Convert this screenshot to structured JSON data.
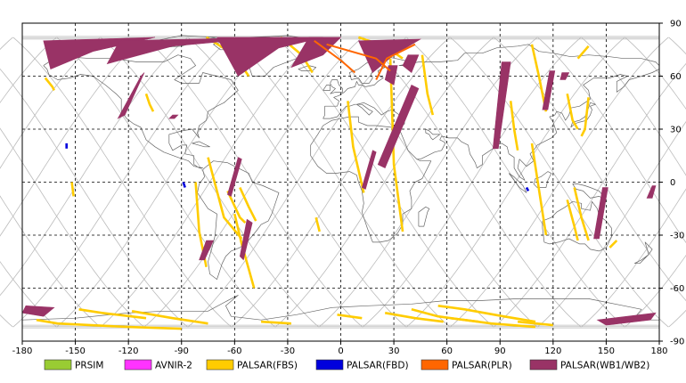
{
  "map": {
    "lon_range": [
      -180,
      180
    ],
    "lat_range": [
      -90,
      90
    ],
    "lon_ticks": [
      "-180",
      "-150",
      "-120",
      "-90",
      "-60",
      "-30",
      "0",
      "30",
      "60",
      "90",
      "120",
      "150",
      "180"
    ],
    "lat_ticks": [
      "90",
      "60",
      "30",
      "0",
      "-30",
      "-60",
      "-90"
    ],
    "grid": "dashed",
    "grid_lon_step": 30,
    "grid_lat_step": 30
  },
  "legend": {
    "placement": "bottom",
    "items": [
      {
        "label": "PRSIM",
        "color": "#99cc33"
      },
      {
        "label": "AVNIR-2",
        "color": "#ff33ff"
      },
      {
        "label": "PALSAR(FBS)",
        "color": "#ffcc00"
      },
      {
        "label": "PALSAR(FBD)",
        "color": "#0000dd"
      },
      {
        "label": "PALSAR(PLR)",
        "color": "#ff6600"
      },
      {
        "label": "PALSAR(WB1/WB2)",
        "color": "#993366"
      }
    ]
  },
  "colors": {
    "orbit": "#bbbbbb",
    "coast": "#666666",
    "grid": "#000000"
  },
  "wb_swaths": [
    {
      "pts": [
        [
          -168,
          80
        ],
        [
          -105,
          82
        ],
        [
          -140,
          74
        ],
        [
          -164,
          64
        ]
      ]
    },
    {
      "pts": [
        [
          -125,
          80
        ],
        [
          -40,
          82
        ],
        [
          -95,
          77
        ],
        [
          -132,
          67
        ]
      ]
    },
    {
      "pts": [
        [
          -70,
          82
        ],
        [
          -10,
          82
        ],
        [
          -35,
          76
        ],
        [
          -58,
          60
        ]
      ]
    },
    {
      "pts": [
        [
          -18,
          82
        ],
        [
          0,
          82
        ],
        [
          -10,
          72
        ],
        [
          -28,
          65
        ]
      ]
    },
    {
      "pts": [
        [
          10,
          80
        ],
        [
          45,
          81
        ],
        [
          30,
          72
        ],
        [
          18,
          62
        ]
      ]
    },
    {
      "pts": [
        [
          44,
          72
        ],
        [
          38,
          72
        ],
        [
          35,
          66
        ],
        [
          40,
          62
        ]
      ]
    },
    {
      "pts": [
        [
          32,
          66
        ],
        [
          27,
          66
        ],
        [
          25,
          58
        ],
        [
          30,
          55
        ]
      ]
    },
    {
      "pts": [
        [
          -113,
          60
        ],
        [
          -111,
          62
        ],
        [
          -122,
          38
        ],
        [
          -126,
          36
        ]
      ]
    },
    {
      "pts": [
        [
          -95,
          38
        ],
        [
          -92,
          38
        ],
        [
          -94,
          36
        ],
        [
          -97,
          36
        ]
      ]
    },
    {
      "pts": [
        [
          -58,
          14
        ],
        [
          -56,
          13
        ],
        [
          -62,
          -8
        ],
        [
          -64,
          -7
        ]
      ]
    },
    {
      "pts": [
        [
          -53,
          -21
        ],
        [
          -50,
          -23
        ],
        [
          -55,
          -44
        ],
        [
          -57,
          -42
        ]
      ]
    },
    {
      "pts": [
        [
          -76,
          -33
        ],
        [
          -72,
          -33
        ],
        [
          -77,
          -44
        ],
        [
          -80,
          -44
        ]
      ]
    },
    {
      "pts": [
        [
          18,
          18
        ],
        [
          20,
          17
        ],
        [
          14,
          -4
        ],
        [
          12,
          -3
        ]
      ]
    },
    {
      "pts": [
        [
          40,
          55
        ],
        [
          44,
          53
        ],
        [
          25,
          8
        ],
        [
          21,
          10
        ]
      ]
    },
    {
      "pts": [
        [
          91,
          68
        ],
        [
          96,
          68
        ],
        [
          89,
          19
        ],
        [
          86,
          19
        ]
      ]
    },
    {
      "pts": [
        [
          118,
          63
        ],
        [
          121,
          63
        ],
        [
          117,
          41
        ],
        [
          114,
          41
        ]
      ]
    },
    {
      "pts": [
        [
          125,
          62
        ],
        [
          129,
          62
        ],
        [
          127,
          58
        ],
        [
          124,
          58
        ]
      ]
    },
    {
      "pts": [
        [
          148,
          -3
        ],
        [
          151,
          -3
        ],
        [
          146,
          -32
        ],
        [
          143,
          -32
        ]
      ]
    },
    {
      "pts": [
        [
          176,
          -2
        ],
        [
          178,
          -2
        ],
        [
          176,
          -9
        ],
        [
          173,
          -9
        ]
      ]
    },
    {
      "pts": [
        [
          -178,
          -70
        ],
        [
          -162,
          -71
        ],
        [
          -168,
          -76
        ],
        [
          -180,
          -74
        ]
      ]
    },
    {
      "pts": [
        [
          145,
          -78
        ],
        [
          178,
          -74
        ],
        [
          175,
          -78
        ],
        [
          150,
          -81
        ]
      ]
    }
  ],
  "plr_tracks": [
    {
      "pts": [
        [
          -15,
          80
        ],
        [
          0,
          69
        ],
        [
          8,
          62
        ]
      ]
    },
    {
      "pts": [
        [
          -8,
          78
        ],
        [
          20,
          70
        ],
        [
          28,
          63
        ]
      ]
    },
    {
      "pts": [
        [
          42,
          78
        ],
        [
          26,
          70
        ],
        [
          20,
          58
        ]
      ]
    }
  ],
  "fbs_tracks": [
    {
      "pts": [
        [
          -76,
          82
        ],
        [
          -60,
          72
        ],
        [
          -52,
          60
        ]
      ]
    },
    {
      "pts": [
        [
          10,
          82
        ],
        [
          25,
          77
        ],
        [
          35,
          70
        ]
      ]
    },
    {
      "pts": [
        [
          -34,
          82
        ],
        [
          -22,
          72
        ],
        [
          -16,
          62
        ]
      ]
    },
    {
      "pts": [
        [
          28,
          70
        ],
        [
          29,
          40
        ],
        [
          30,
          10
        ],
        [
          35,
          -28
        ]
      ]
    },
    {
      "pts": [
        [
          4,
          46
        ],
        [
          7,
          20
        ],
        [
          13,
          -6
        ]
      ]
    },
    {
      "pts": [
        [
          -75,
          14
        ],
        [
          -66,
          -20
        ],
        [
          -56,
          -32
        ]
      ]
    },
    {
      "pts": [
        [
          -82,
          0
        ],
        [
          -80,
          -28
        ],
        [
          -76,
          -48
        ]
      ]
    },
    {
      "pts": [
        [
          -60,
          -18
        ],
        [
          -56,
          -35
        ],
        [
          -49,
          -60
        ]
      ]
    },
    {
      "pts": [
        [
          -64,
          -5
        ],
        [
          -57,
          -20
        ],
        [
          -54,
          -23
        ]
      ]
    },
    {
      "pts": [
        [
          -57,
          -3
        ],
        [
          -52,
          -14
        ],
        [
          -48,
          -22
        ]
      ]
    },
    {
      "pts": [
        [
          46,
          72
        ],
        [
          49,
          50
        ],
        [
          52,
          38
        ]
      ]
    },
    {
      "pts": [
        [
          108,
          78
        ],
        [
          112,
          60
        ],
        [
          116,
          40
        ]
      ]
    },
    {
      "pts": [
        [
          128,
          50
        ],
        [
          131,
          35
        ],
        [
          134,
          30
        ]
      ]
    },
    {
      "pts": [
        [
          140,
          48
        ],
        [
          138,
          30
        ],
        [
          136,
          26
        ]
      ]
    },
    {
      "pts": [
        [
          96,
          46
        ],
        [
          98,
          30
        ],
        [
          100,
          18
        ]
      ]
    },
    {
      "pts": [
        [
          108,
          22
        ],
        [
          112,
          -4
        ],
        [
          116,
          -30
        ]
      ]
    },
    {
      "pts": [
        [
          132,
          -3
        ],
        [
          136,
          -20
        ],
        [
          140,
          -33
        ]
      ]
    },
    {
      "pts": [
        [
          128,
          -10
        ],
        [
          132,
          -25
        ],
        [
          134,
          -33
        ]
      ]
    },
    {
      "pts": [
        [
          -167,
          59
        ],
        [
          -163,
          54
        ],
        [
          -162,
          52
        ]
      ]
    },
    {
      "pts": [
        [
          -110,
          50
        ],
        [
          -108,
          44
        ],
        [
          -106,
          40
        ]
      ]
    },
    {
      "pts": [
        [
          -14,
          -20
        ],
        [
          -12,
          -28
        ]
      ]
    },
    {
      "pts": [
        [
          140,
          77
        ],
        [
          134,
          70
        ]
      ]
    },
    {
      "pts": [
        [
          156,
          -33
        ],
        [
          152,
          -37
        ]
      ]
    },
    {
      "pts": [
        [
          -152,
          0
        ],
        [
          -151,
          -8
        ]
      ]
    },
    {
      "pts": [
        [
          -172,
          -78
        ],
        [
          -160,
          -80
        ],
        [
          -120,
          -82
        ],
        [
          -90,
          -83
        ]
      ]
    },
    {
      "pts": [
        [
          -148,
          -72
        ],
        [
          -135,
          -74
        ],
        [
          -110,
          -77
        ]
      ]
    },
    {
      "pts": [
        [
          -118,
          -73
        ],
        [
          -95,
          -77
        ],
        [
          -75,
          -80
        ]
      ]
    },
    {
      "pts": [
        [
          40,
          -72
        ],
        [
          55,
          -76
        ],
        [
          85,
          -80
        ],
        [
          110,
          -82
        ]
      ]
    },
    {
      "pts": [
        [
          55,
          -70
        ],
        [
          70,
          -72
        ],
        [
          92,
          -76
        ],
        [
          110,
          -79
        ]
      ]
    },
    {
      "pts": [
        [
          25,
          -74
        ],
        [
          42,
          -77
        ],
        [
          58,
          -79
        ]
      ]
    },
    {
      "pts": [
        [
          -2,
          -75
        ],
        [
          12,
          -77
        ]
      ]
    },
    {
      "pts": [
        [
          62,
          -77
        ],
        [
          78,
          -79
        ]
      ]
    },
    {
      "pts": [
        [
          100,
          -79
        ],
        [
          120,
          -81
        ]
      ]
    },
    {
      "pts": [
        [
          -45,
          -79
        ],
        [
          -28,
          -80
        ]
      ]
    },
    {
      "pts": [
        [
          -170,
          -72
        ],
        [
          -172,
          -75
        ]
      ]
    }
  ],
  "fbd_marks": [
    {
      "pts": [
        [
          -155,
          22
        ],
        [
          -155,
          19
        ]
      ]
    },
    {
      "pts": [
        [
          -89,
          0
        ],
        [
          -88,
          -3
        ]
      ]
    },
    {
      "pts": [
        [
          105,
          -3
        ],
        [
          106,
          -5
        ]
      ]
    }
  ]
}
